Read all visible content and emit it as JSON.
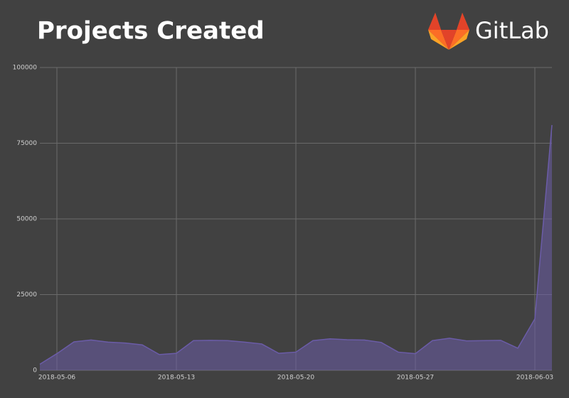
{
  "chart_data": {
    "type": "area",
    "title": "Projects Created",
    "logo": "GitLab",
    "x": [
      "2018-05-05",
      "2018-05-06",
      "2018-05-07",
      "2018-05-08",
      "2018-05-09",
      "2018-05-10",
      "2018-05-11",
      "2018-05-12",
      "2018-05-13",
      "2018-05-14",
      "2018-05-15",
      "2018-05-16",
      "2018-05-17",
      "2018-05-18",
      "2018-05-19",
      "2018-05-20",
      "2018-05-21",
      "2018-05-22",
      "2018-05-23",
      "2018-05-24",
      "2018-05-25",
      "2018-05-26",
      "2018-05-27",
      "2018-05-28",
      "2018-05-29",
      "2018-05-30",
      "2018-05-31",
      "2018-06-01",
      "2018-06-02",
      "2018-06-03",
      "2018-06-04"
    ],
    "values": [
      2000,
      5500,
      9400,
      10000,
      9300,
      9000,
      8400,
      5200,
      5600,
      9800,
      9900,
      9800,
      9300,
      8700,
      5600,
      6000,
      9800,
      10400,
      10100,
      10000,
      9200,
      6000,
      5500,
      9800,
      10600,
      9700,
      9800,
      9900,
      7300,
      17000,
      81000
    ],
    "color": "#6b5ca8",
    "xlim": [
      "2018-05-05",
      "2018-06-04"
    ],
    "xticks": [
      "2018-05-06",
      "2018-05-13",
      "2018-05-20",
      "2018-05-27",
      "2018-06-03"
    ],
    "ylim": [
      0,
      100000
    ],
    "yticks": [
      0,
      25000,
      50000,
      75000,
      100000
    ],
    "grid": true
  }
}
